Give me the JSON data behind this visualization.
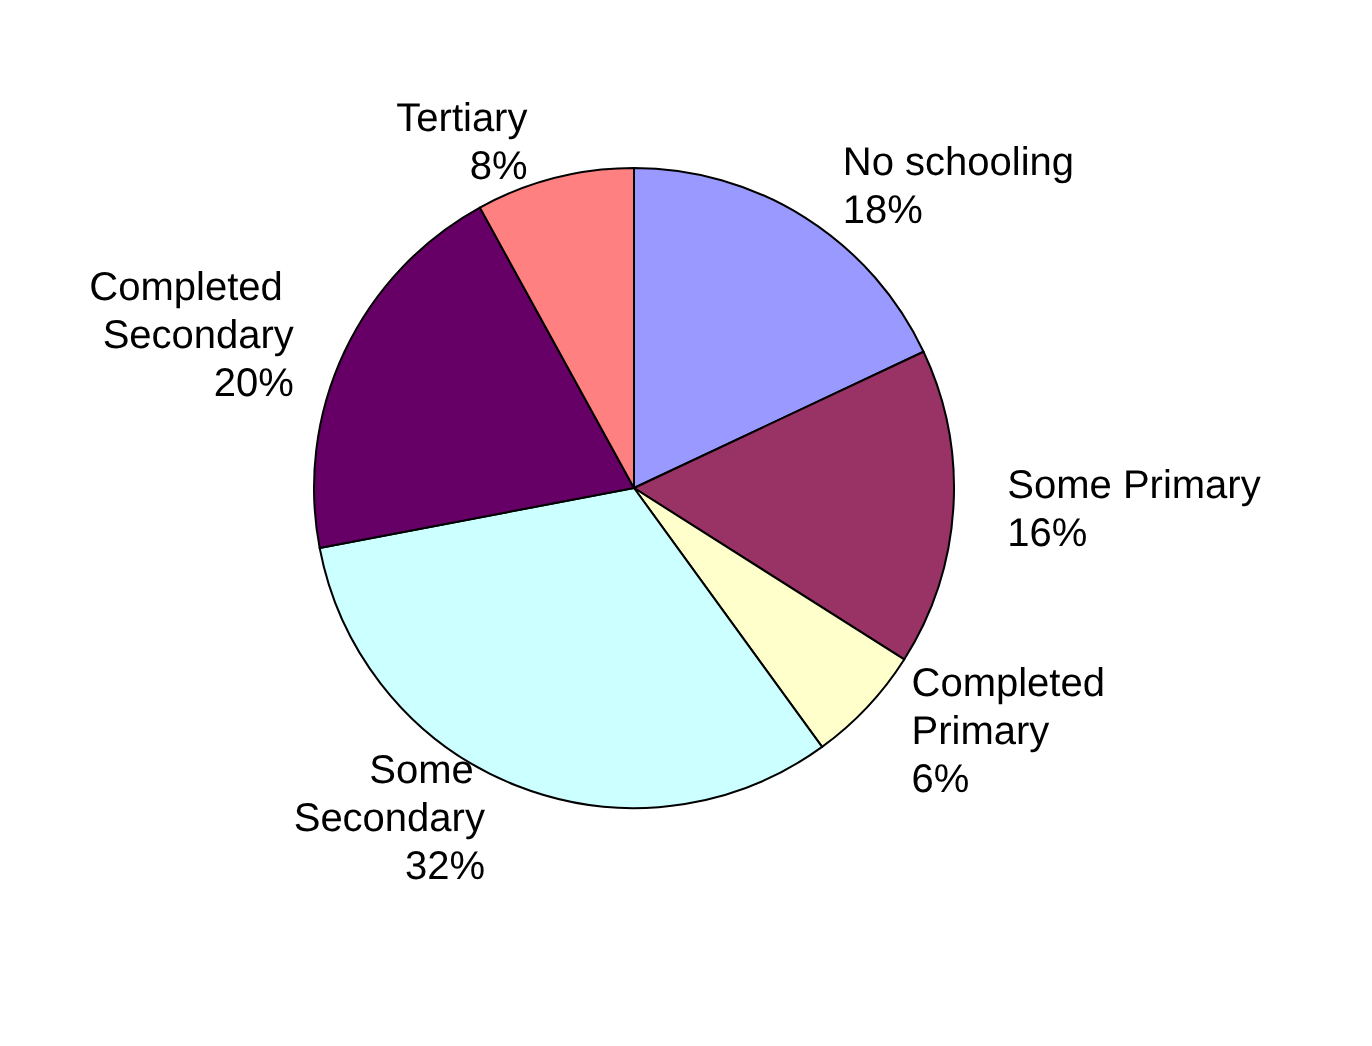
{
  "chart_data": {
    "type": "pie",
    "categories": [
      "No schooling",
      "Some Primary",
      "Completed Primary",
      "Some Secondary",
      "Completed Secondary",
      "Tertiary"
    ],
    "values": [
      18,
      16,
      6,
      32,
      20,
      8
    ],
    "value_labels": [
      "18%",
      "16%",
      "6%",
      "32%",
      "20%",
      "8%"
    ],
    "colors": [
      "#9999ff",
      "#993366",
      "#ffffcc",
      "#ccffff",
      "#660066",
      "#ff8080"
    ]
  }
}
